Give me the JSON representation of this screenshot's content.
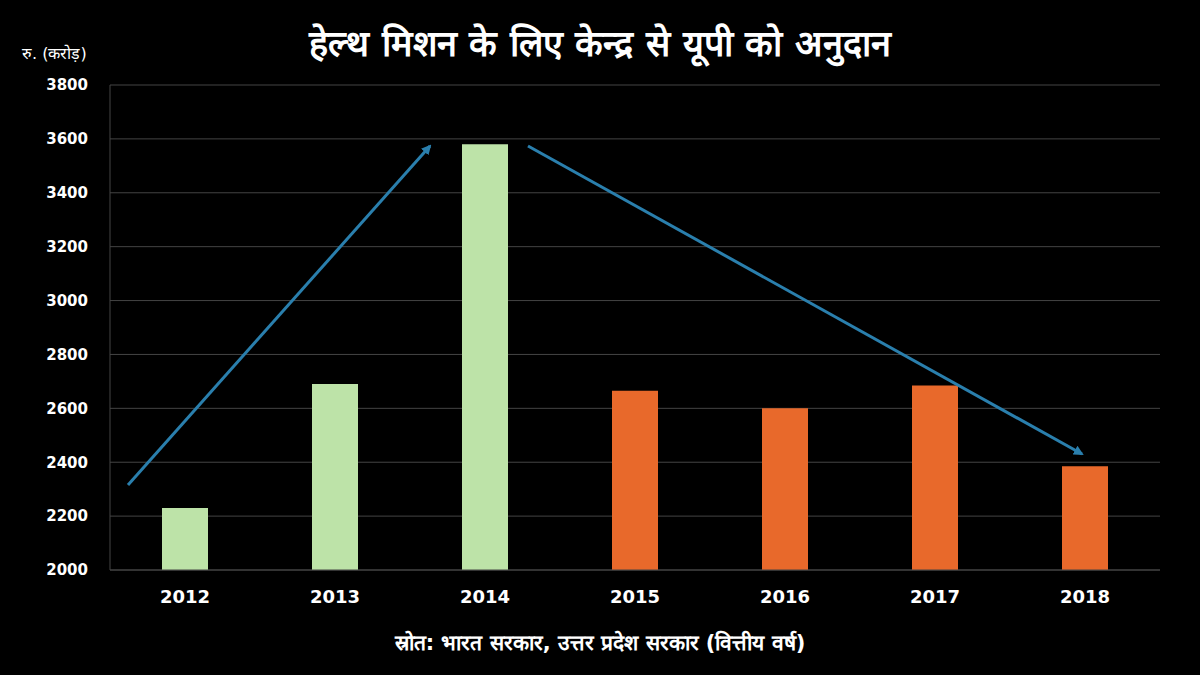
{
  "chart_data": {
    "type": "bar",
    "title": "हेल्थ मिशन के लिए केन्द्र से यूपी को अनुदान",
    "y_label": "रु. (करोड़)",
    "source": "स्रोत: भारत सरकार, उत्तर प्रदेश सरकार (वित्तीय वर्ष)",
    "categories": [
      "2012",
      "2013",
      "2014",
      "2015",
      "2016",
      "2017",
      "2018"
    ],
    "values": [
      2230,
      2690,
      3580,
      2665,
      2600,
      2685,
      2385
    ],
    "colors": [
      "#bde3a8",
      "#bde3a8",
      "#bde3a8",
      "#e8692b",
      "#e8692b",
      "#e8692b",
      "#e8692b"
    ],
    "ylim": [
      2000,
      3800
    ],
    "yticks": [
      2000,
      2200,
      2400,
      2600,
      2800,
      3000,
      3200,
      3400,
      3600,
      3800
    ],
    "grid": true
  }
}
